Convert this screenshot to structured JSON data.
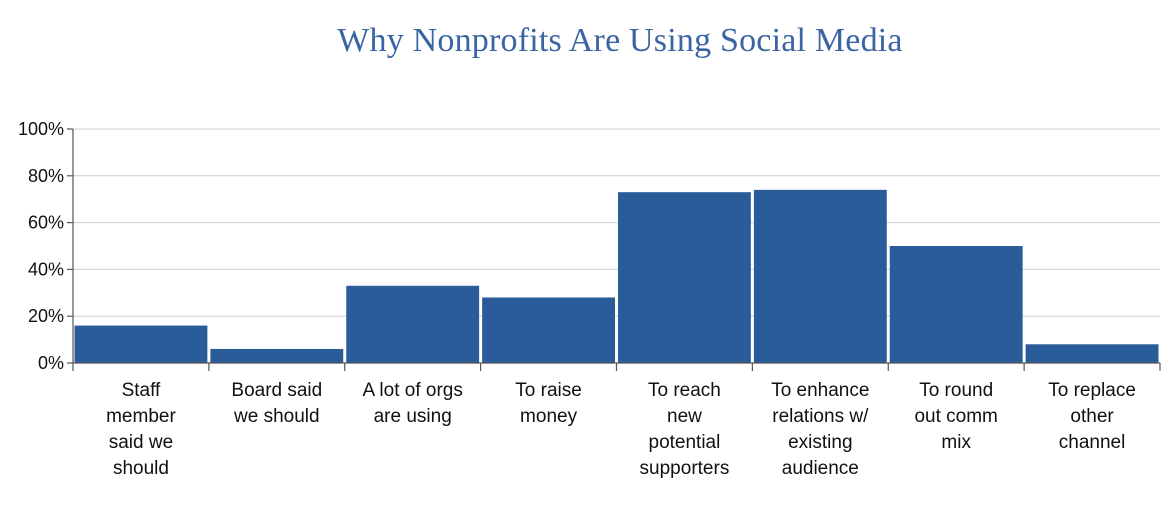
{
  "chart_data": {
    "type": "bar",
    "title": "Why Nonprofits Are Using Social Media",
    "categories": [
      [
        "Staff",
        "member",
        "said we",
        "should"
      ],
      [
        "Board said",
        "we should"
      ],
      [
        "A lot of orgs",
        "are using"
      ],
      [
        "To raise",
        "money"
      ],
      [
        "To reach",
        "new",
        "potential",
        "supporters"
      ],
      [
        "To enhance",
        "relations w/",
        "existing",
        "audience"
      ],
      [
        "To round",
        "out comm",
        "mix"
      ],
      [
        "To replace",
        "other",
        "channel"
      ]
    ],
    "values": [
      16,
      6,
      33,
      28,
      73,
      74,
      50,
      8
    ],
    "ylim": [
      0,
      100
    ],
    "yticks": [
      "0%",
      "20%",
      "40%",
      "60%",
      "80%",
      "100%"
    ],
    "xlabel": "",
    "ylabel": "",
    "grid": true,
    "bar_color": "#2b5c9a",
    "grid_color": "#cfcfcf",
    "title_color": "#3a64a3"
  }
}
